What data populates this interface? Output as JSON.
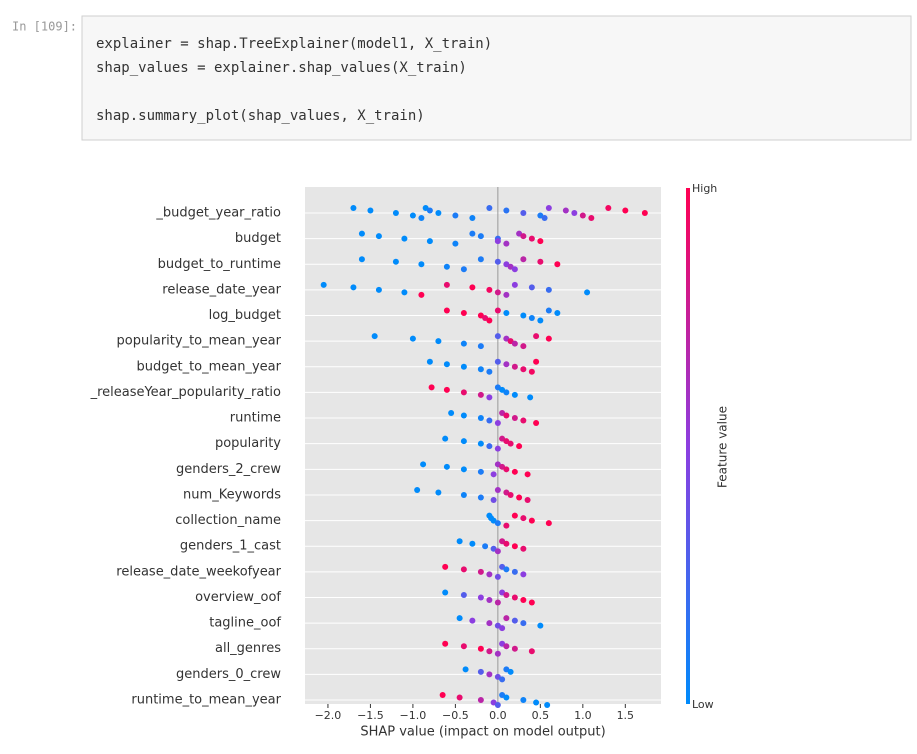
{
  "cell": {
    "prompt": "In [109]:",
    "code": [
      "explainer = shap.TreeExplainer(model1, X_train)",
      "shap_values = explainer.shap_values(X_train)",
      "shap.summary_plot(shap_values, X_train)"
    ]
  },
  "chart_data": {
    "type": "beeswarm",
    "xlabel": "SHAP value (impact on model output)",
    "colorbar": {
      "label": "Feature value",
      "high": "High",
      "low": "Low",
      "low_color": "#008bfb",
      "mid_color": "#8c3ee0",
      "high_color": "#ff0052"
    },
    "xlim": [
      -2.27,
      1.92
    ],
    "xticks": [
      {
        "value": -2,
        "label": "−2.0"
      },
      {
        "value": -1.5,
        "label": "−1.5"
      },
      {
        "value": -1,
        "label": "−1.0"
      },
      {
        "value": -0.5,
        "label": "−0.5"
      },
      {
        "value": 0,
        "label": "0.0"
      },
      0.5,
      {
        "value": 1,
        "label": "1.0"
      },
      1.5
    ],
    "categories": [
      "_budget_year_ratio",
      "budget",
      "budget_to_runtime",
      "release_date_year",
      "log_budget",
      "popularity_to_mean_year",
      "budget_to_mean_year",
      "_releaseYear_popularity_ratio",
      "runtime",
      "popularity",
      "genders_2_crew",
      "num_Keywords",
      "collection_name",
      "genders_1_cast",
      "release_date_weekofyear",
      "overview_oof",
      "tagline_oof",
      "all_genres",
      "genders_0_crew",
      "runtime_to_mean_year"
    ],
    "shap_values": [
      [
        -1.7,
        -1.5,
        -1.2,
        -1.0,
        -0.9,
        -0.85,
        -0.8,
        -0.7,
        -0.5,
        -0.3,
        -0.1,
        0.1,
        0.3,
        0.5,
        0.55,
        0.6,
        0.8,
        0.9,
        1.0,
        1.1,
        1.3,
        1.5,
        1.73
      ],
      [
        -1.6,
        -1.4,
        -1.1,
        -0.8,
        -0.5,
        -0.3,
        -0.2,
        0.0,
        0.0,
        0.1,
        0.25,
        0.3,
        0.4,
        0.5
      ],
      [
        -1.6,
        -1.2,
        -0.9,
        -0.6,
        -0.4,
        -0.2,
        0.0,
        0.1,
        0.15,
        0.2,
        0.3,
        0.5,
        0.7
      ],
      [
        -2.05,
        -1.7,
        -1.4,
        -1.1,
        -0.9,
        -0.6,
        -0.3,
        -0.1,
        0.0,
        0.1,
        0.2,
        0.4,
        0.6,
        1.05
      ],
      [
        -0.6,
        -0.4,
        -0.2,
        -0.15,
        -0.1,
        0.0,
        0.1,
        0.3,
        0.4,
        0.5,
        0.6,
        0.7
      ],
      [
        -1.45,
        -1.0,
        -0.7,
        -0.4,
        -0.2,
        0.0,
        0.1,
        0.15,
        0.2,
        0.3,
        0.45,
        0.6
      ],
      [
        -0.8,
        -0.6,
        -0.4,
        -0.2,
        -0.1,
        0.0,
        0.1,
        0.2,
        0.3,
        0.4,
        0.45
      ],
      [
        -0.78,
        -0.6,
        -0.4,
        -0.2,
        -0.1,
        0.0,
        0.05,
        0.1,
        0.2,
        0.38
      ],
      [
        -0.55,
        -0.4,
        -0.2,
        -0.1,
        0.0,
        0.05,
        0.1,
        0.2,
        0.3,
        0.45
      ],
      [
        -0.62,
        -0.4,
        -0.2,
        -0.1,
        0.0,
        0.05,
        0.1,
        0.15,
        0.25
      ],
      [
        -0.88,
        -0.6,
        -0.4,
        -0.2,
        -0.05,
        0.0,
        0.05,
        0.1,
        0.2,
        0.35
      ],
      [
        -0.95,
        -0.7,
        -0.4,
        -0.2,
        -0.05,
        0.0,
        0.1,
        0.15,
        0.25,
        0.35
      ],
      [
        -0.1,
        -0.08,
        -0.05,
        0.0,
        0.1,
        0.2,
        0.3,
        0.4,
        0.6
      ],
      [
        -0.45,
        -0.3,
        -0.15,
        -0.05,
        0.0,
        0.05,
        0.1,
        0.2,
        0.3
      ],
      [
        -0.62,
        -0.4,
        -0.2,
        -0.1,
        0.0,
        0.05,
        0.1,
        0.2,
        0.3
      ],
      [
        -0.62,
        -0.4,
        -0.2,
        -0.1,
        0.0,
        0.05,
        0.1,
        0.2,
        0.3,
        0.4
      ],
      [
        -0.45,
        -0.3,
        -0.1,
        0.0,
        0.05,
        0.1,
        0.2,
        0.3,
        0.5
      ],
      [
        -0.62,
        -0.4,
        -0.2,
        -0.1,
        0.0,
        0.05,
        0.1,
        0.2,
        0.4
      ],
      [
        -0.38,
        -0.2,
        -0.1,
        0.0,
        0.05,
        0.1,
        0.15
      ],
      [
        -0.65,
        -0.45,
        -0.2,
        -0.05,
        0.0,
        0.05,
        0.1,
        0.3,
        0.45,
        0.58
      ]
    ],
    "feature_values": [
      [
        0.0,
        0.0,
        0.0,
        0.0,
        0.05,
        0.0,
        0.1,
        0.0,
        0.1,
        0.05,
        0.2,
        0.15,
        0.3,
        0.1,
        0.2,
        0.5,
        0.6,
        0.5,
        0.8,
        0.9,
        0.95,
        1.0,
        1.0
      ],
      [
        0.0,
        0.0,
        0.0,
        0.0,
        0.05,
        0.1,
        0.1,
        0.2,
        0.5,
        0.6,
        0.6,
        0.8,
        0.9,
        1.0
      ],
      [
        0.0,
        0.0,
        0.0,
        0.05,
        0.1,
        0.1,
        0.3,
        0.5,
        0.6,
        0.5,
        0.7,
        0.9,
        1.0
      ],
      [
        0.0,
        0.0,
        0.0,
        0.0,
        1.0,
        0.9,
        1.0,
        0.95,
        0.8,
        0.6,
        0.5,
        0.3,
        0.2,
        0.0
      ],
      [
        1.0,
        1.0,
        1.0,
        0.9,
        1.0,
        0.9,
        0.0,
        0.0,
        0.05,
        0.0,
        0.1,
        0.0
      ],
      [
        0.0,
        0.0,
        0.0,
        0.05,
        0.1,
        0.3,
        0.6,
        0.9,
        0.7,
        0.8,
        0.9,
        1.0
      ],
      [
        0.0,
        0.0,
        0.0,
        0.05,
        0.1,
        0.3,
        0.6,
        0.8,
        0.9,
        0.95,
        1.0
      ],
      [
        1.0,
        1.0,
        0.9,
        0.8,
        0.5,
        0.1,
        0.0,
        0.05,
        0.0,
        0.0
      ],
      [
        0.0,
        0.0,
        0.05,
        0.2,
        0.5,
        0.7,
        0.9,
        0.8,
        0.9,
        1.0
      ],
      [
        0.0,
        0.0,
        0.0,
        0.2,
        0.5,
        0.8,
        0.9,
        0.9,
        1.0
      ],
      [
        0.0,
        0.0,
        0.0,
        0.1,
        0.5,
        0.6,
        0.8,
        0.9,
        1.0,
        1.0
      ],
      [
        0.0,
        0.0,
        0.05,
        0.1,
        0.4,
        0.6,
        0.8,
        0.9,
        1.0,
        0.9
      ],
      [
        0.0,
        0.0,
        0.0,
        0.1,
        0.9,
        1.0,
        0.9,
        1.0,
        1.0
      ],
      [
        0.0,
        0.0,
        0.1,
        0.3,
        0.6,
        0.8,
        0.9,
        1.0,
        0.9
      ],
      [
        1.0,
        0.9,
        0.8,
        0.6,
        0.4,
        0.3,
        0.1,
        0.2,
        0.5
      ],
      [
        0.0,
        0.3,
        0.5,
        0.6,
        0.7,
        0.5,
        0.8,
        0.9,
        1.0,
        1.0
      ],
      [
        0.0,
        0.5,
        0.6,
        0.4,
        0.5,
        0.7,
        0.3,
        0.2,
        0.0
      ],
      [
        1.0,
        0.9,
        1.0,
        0.8,
        0.6,
        0.5,
        0.7,
        0.8,
        0.9
      ],
      [
        0.0,
        0.3,
        0.6,
        0.4,
        0.2,
        0.1,
        0.0
      ],
      [
        1.0,
        0.9,
        0.7,
        0.5,
        0.3,
        0.1,
        0.0,
        0.05,
        0.0,
        0.0
      ]
    ]
  }
}
